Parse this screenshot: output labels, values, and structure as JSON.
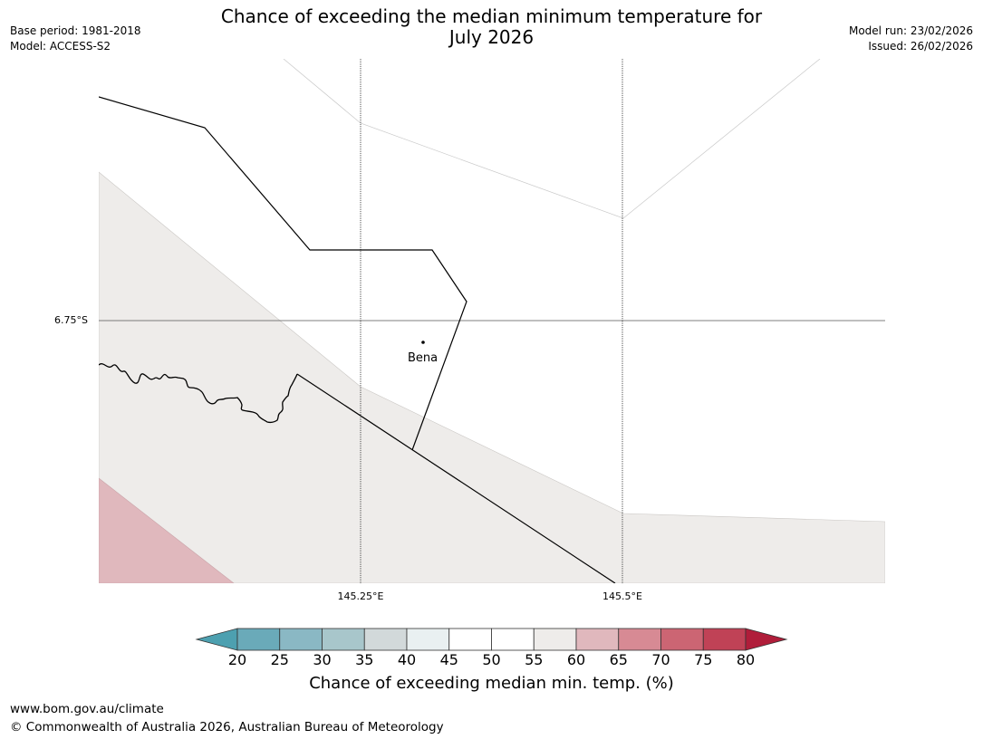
{
  "header": {
    "title_line1": "Chance of exceeding the median minimum temperature for",
    "title_line2": "July 2026",
    "base_period": "Base period: 1981-2018",
    "model": "Model: ACCESS-S2",
    "model_run": "Model run: 23/02/2026",
    "issued": "Issued: 26/02/2026"
  },
  "map": {
    "lat_label": "6.75°S",
    "lon_labels": [
      "145.25°E",
      "145.5°E"
    ],
    "place_name": "Bena",
    "category_colors": {
      "50_55": "#ffffff",
      "55_60": "#eeecea",
      "60_65": "#e0b8bd"
    }
  },
  "colorbar": {
    "ticks": [
      "20",
      "25",
      "30",
      "35",
      "40",
      "45",
      "50",
      "55",
      "60",
      "65",
      "70",
      "75",
      "80"
    ],
    "colors": [
      "#4da0b0",
      "#6aaab9",
      "#8ab8c4",
      "#a8c6cb",
      "#d2d9da",
      "#e9f0f1",
      "#ffffff",
      "#ffffff",
      "#eeecea",
      "#e0b8bd",
      "#d78a94",
      "#cc6573",
      "#c04256",
      "#b01d3a"
    ],
    "label": "Chance of exceeding median min. temp. (%)"
  },
  "footer": {
    "website": "www.bom.gov.au/climate",
    "copyright": "© Commonwealth of Australia 2026, Australian Bureau of Meteorology"
  }
}
